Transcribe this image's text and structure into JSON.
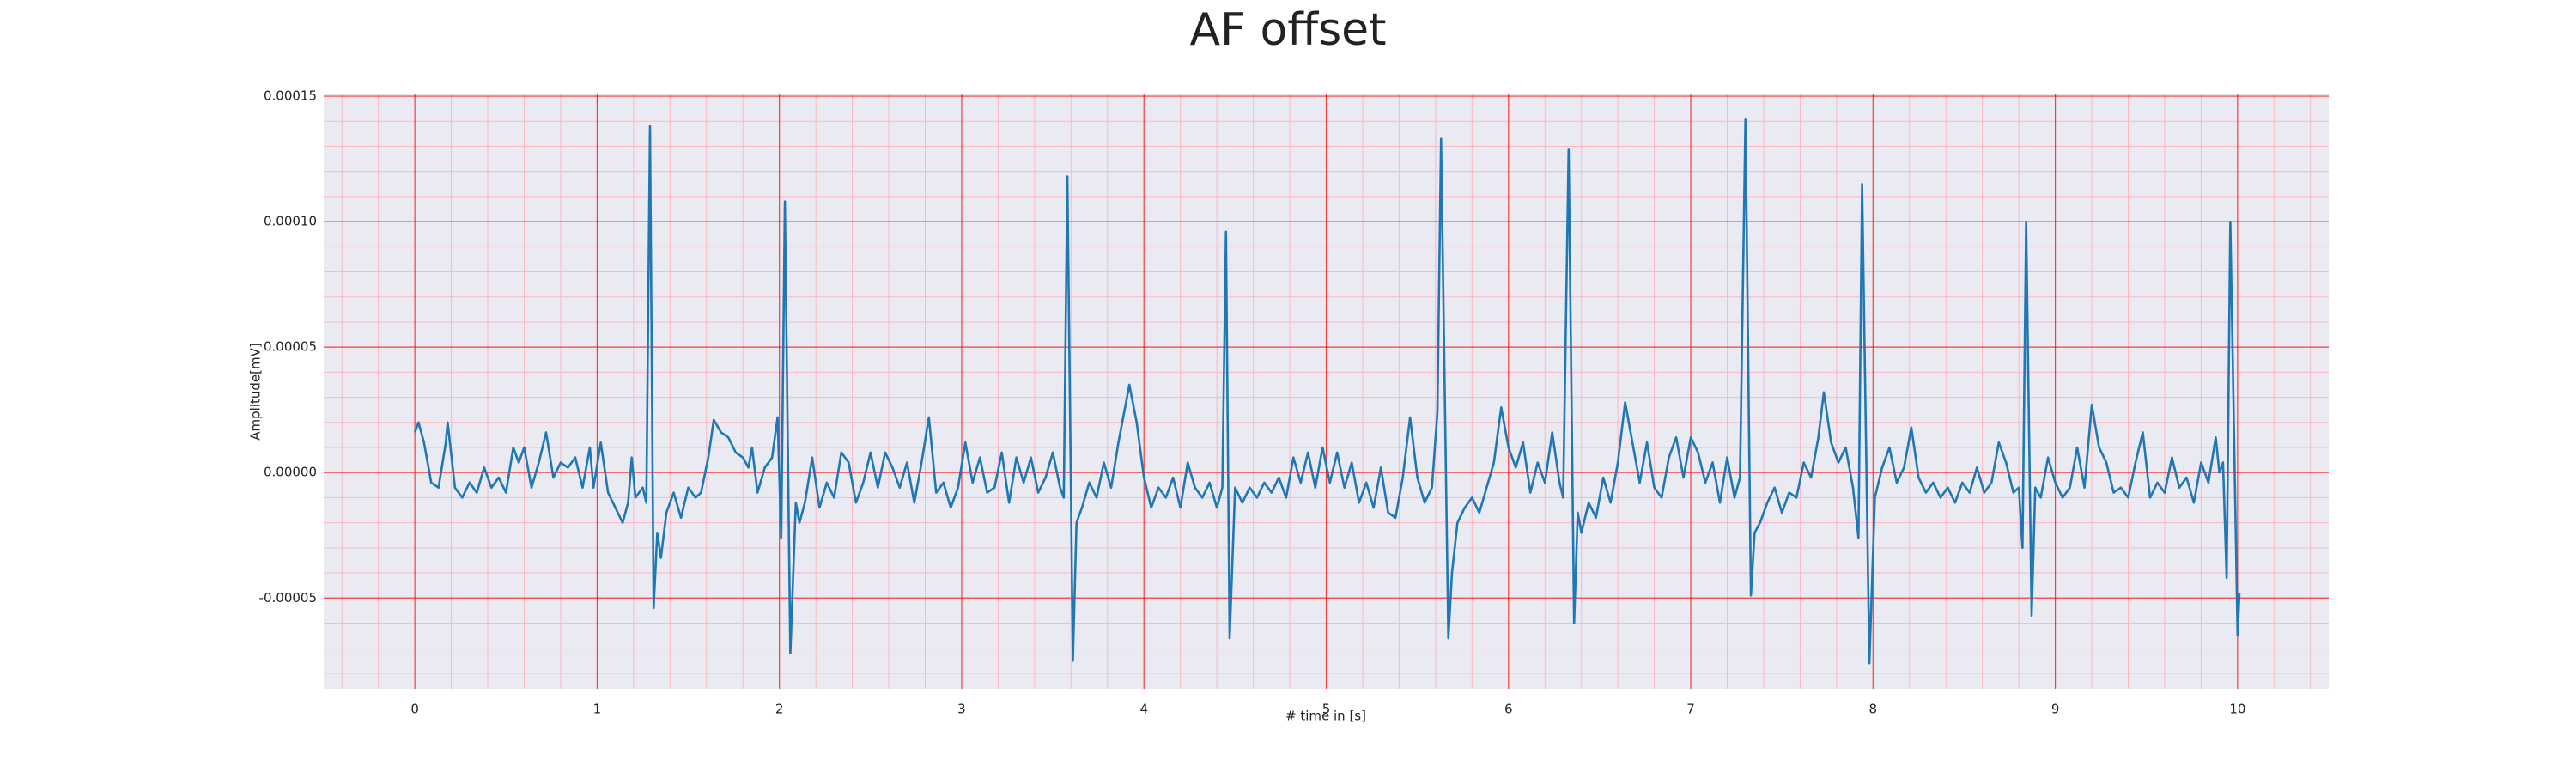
{
  "chart_data": {
    "type": "line",
    "title": "AF offset",
    "x_label": "# time in [s]",
    "y_label": "Amplitude[mV]",
    "color": "#1f77b4",
    "background": "#eaeaf2",
    "grid": true,
    "grid_color": "#ff0000",
    "minor_grid": true,
    "minor_grid_color": "#ffb6c1",
    "xlim": [
      -0.5,
      10.5
    ],
    "ylim": [
      -8.62e-05,
      0.0001507
    ],
    "xticks": [
      0,
      1,
      2,
      3,
      4,
      5,
      6,
      7,
      8,
      9,
      10
    ],
    "yticks": [
      {
        "value": -5e-05,
        "label": "-0.00005"
      },
      {
        "value": 0,
        "label": "0.00000"
      },
      {
        "value": 5e-05,
        "label": "0.00005"
      },
      {
        "value": 0.0001,
        "label": "0.00010"
      },
      {
        "value": 0.00015,
        "label": "0.00015"
      }
    ],
    "x": [
      0.0,
      0.02,
      0.05,
      0.09,
      0.13,
      0.17,
      0.18,
      0.22,
      0.26,
      0.3,
      0.34,
      0.38,
      0.42,
      0.46,
      0.5,
      0.54,
      0.57,
      0.6,
      0.64,
      0.68,
      0.72,
      0.76,
      0.8,
      0.84,
      0.88,
      0.92,
      0.96,
      0.98,
      1.02,
      1.06,
      1.1,
      1.14,
      1.17,
      1.19,
      1.21,
      1.25,
      1.27,
      1.29,
      1.31,
      1.33,
      1.35,
      1.38,
      1.42,
      1.46,
      1.5,
      1.54,
      1.57,
      1.61,
      1.64,
      1.68,
      1.72,
      1.76,
      1.8,
      1.83,
      1.85,
      1.88,
      1.92,
      1.96,
      1.99,
      2.01,
      2.03,
      2.06,
      2.09,
      2.11,
      2.14,
      2.18,
      2.22,
      2.26,
      2.3,
      2.34,
      2.38,
      2.42,
      2.46,
      2.5,
      2.54,
      2.58,
      2.62,
      2.66,
      2.7,
      2.74,
      2.78,
      2.82,
      2.86,
      2.9,
      2.94,
      2.98,
      3.02,
      3.06,
      3.1,
      3.14,
      3.18,
      3.22,
      3.26,
      3.3,
      3.34,
      3.38,
      3.42,
      3.46,
      3.5,
      3.54,
      3.56,
      3.58,
      3.61,
      3.63,
      3.66,
      3.7,
      3.74,
      3.78,
      3.82,
      3.86,
      3.92,
      3.96,
      4.0,
      4.04,
      4.08,
      4.12,
      4.16,
      4.2,
      4.24,
      4.28,
      4.32,
      4.36,
      4.4,
      4.43,
      4.45,
      4.47,
      4.5,
      4.54,
      4.58,
      4.62,
      4.66,
      4.7,
      4.74,
      4.78,
      4.82,
      4.86,
      4.9,
      4.94,
      4.98,
      5.02,
      5.06,
      5.1,
      5.14,
      5.18,
      5.22,
      5.26,
      5.3,
      5.34,
      5.38,
      5.42,
      5.46,
      5.5,
      5.54,
      5.58,
      5.61,
      5.63,
      5.67,
      5.69,
      5.72,
      5.76,
      5.8,
      5.84,
      5.88,
      5.92,
      5.96,
      6.0,
      6.04,
      6.08,
      6.12,
      6.16,
      6.2,
      6.24,
      6.28,
      6.3,
      6.33,
      6.36,
      6.38,
      6.4,
      6.44,
      6.48,
      6.52,
      6.56,
      6.6,
      6.64,
      6.68,
      6.72,
      6.76,
      6.8,
      6.84,
      6.88,
      6.92,
      6.96,
      7.0,
      7.04,
      7.08,
      7.12,
      7.16,
      7.2,
      7.24,
      7.27,
      7.3,
      7.33,
      7.35,
      7.38,
      7.42,
      7.46,
      7.5,
      7.54,
      7.58,
      7.62,
      7.66,
      7.7,
      7.73,
      7.77,
      7.81,
      7.85,
      7.89,
      7.92,
      7.94,
      7.98,
      8.01,
      8.05,
      8.09,
      8.13,
      8.17,
      8.21,
      8.25,
      8.29,
      8.33,
      8.37,
      8.41,
      8.45,
      8.49,
      8.53,
      8.57,
      8.61,
      8.65,
      8.69,
      8.73,
      8.77,
      8.8,
      8.82,
      8.84,
      8.87,
      8.89,
      8.92,
      8.96,
      9.0,
      9.04,
      9.08,
      9.12,
      9.16,
      9.2,
      9.24,
      9.28,
      9.32,
      9.36,
      9.4,
      9.44,
      9.48,
      9.52,
      9.56,
      9.6,
      9.64,
      9.68,
      9.72,
      9.76,
      9.8,
      9.84,
      9.88,
      9.9,
      9.92,
      9.94,
      9.96,
      10.0,
      10.01
    ],
    "values": [
      1.6e-05,
      2e-05,
      1.2e-05,
      -4e-06,
      -6e-06,
      1.2e-05,
      2e-05,
      -6e-06,
      -1e-05,
      -4e-06,
      -8e-06,
      2e-06,
      -6e-06,
      -2e-06,
      -8e-06,
      1e-05,
      4e-06,
      1e-05,
      -6e-06,
      4e-06,
      1.6e-05,
      -2e-06,
      4e-06,
      2e-06,
      6e-06,
      -6e-06,
      1e-05,
      -6e-06,
      1.2e-05,
      -8e-06,
      -1.4e-05,
      -2e-05,
      -1.2e-05,
      6e-06,
      -1e-05,
      -6e-06,
      -1.2e-05,
      0.000138,
      -5.4e-05,
      -2.4e-05,
      -3.4e-05,
      -1.6e-05,
      -8e-06,
      -1.8e-05,
      -6e-06,
      -1e-05,
      -8e-06,
      6e-06,
      2.1e-05,
      1.6e-05,
      1.4e-05,
      8e-06,
      6e-06,
      2e-06,
      1e-05,
      -8e-06,
      2e-06,
      6e-06,
      2.2e-05,
      -2.6e-05,
      0.000108,
      -7.2e-05,
      -1.2e-05,
      -2e-05,
      -1.2e-05,
      6e-06,
      -1.4e-05,
      -4e-06,
      -1e-05,
      8e-06,
      4e-06,
      -1.2e-05,
      -4e-06,
      8e-06,
      -6e-06,
      8e-06,
      2e-06,
      -6e-06,
      4e-06,
      -1.2e-05,
      4e-06,
      2.2e-05,
      -8e-06,
      -4e-06,
      -1.4e-05,
      -6e-06,
      1.2e-05,
      -4e-06,
      6e-06,
      -8e-06,
      -6e-06,
      8e-06,
      -1.2e-05,
      6e-06,
      -4e-06,
      6e-06,
      -8e-06,
      -2e-06,
      8e-06,
      -6e-06,
      -1e-05,
      0.000118,
      -7.5e-05,
      -2e-05,
      -1.4e-05,
      -4e-06,
      -1e-05,
      4e-06,
      -6e-06,
      1.2e-05,
      3.5e-05,
      2e-05,
      -2e-06,
      -1.4e-05,
      -6e-06,
      -1e-05,
      -2e-06,
      -1.4e-05,
      4e-06,
      -6e-06,
      -1e-05,
      -4e-06,
      -1.4e-05,
      -6e-06,
      9.6e-05,
      -6.6e-05,
      -6e-06,
      -1.2e-05,
      -6e-06,
      -1e-05,
      -4e-06,
      -8e-06,
      -2e-06,
      -1e-05,
      6e-06,
      -4e-06,
      8e-06,
      -6e-06,
      1e-05,
      -4e-06,
      8e-06,
      -6e-06,
      4e-06,
      -1.2e-05,
      -4e-06,
      -1.4e-05,
      2e-06,
      -1.6e-05,
      -1.8e-05,
      -2e-06,
      2.2e-05,
      -2e-06,
      -1.2e-05,
      -6e-06,
      2.4e-05,
      0.000133,
      -6.6e-05,
      -4e-05,
      -2e-05,
      -1.4e-05,
      -1e-05,
      -1.6e-05,
      -6e-06,
      4e-06,
      2.6e-05,
      1e-05,
      2e-06,
      1.2e-05,
      -8e-06,
      4e-06,
      -4e-06,
      1.6e-05,
      -4e-06,
      -1e-05,
      0.000129,
      -6e-05,
      -1.6e-05,
      -2.4e-05,
      -1.2e-05,
      -1.8e-05,
      -2e-06,
      -1.2e-05,
      4e-06,
      2.8e-05,
      1.2e-05,
      -4e-06,
      1.2e-05,
      -6e-06,
      -1e-05,
      6e-06,
      1.4e-05,
      -2e-06,
      1.4e-05,
      8e-06,
      -4e-06,
      4e-06,
      -1.2e-05,
      6e-06,
      -1e-05,
      -2e-06,
      0.000141,
      -4.9e-05,
      -2.4e-05,
      -2e-05,
      -1.2e-05,
      -6e-06,
      -1.6e-05,
      -8e-06,
      -1e-05,
      4e-06,
      -2e-06,
      1.4e-05,
      3.2e-05,
      1.2e-05,
      4e-06,
      1e-05,
      -6e-06,
      -2.6e-05,
      0.000115,
      -7.6e-05,
      -1e-05,
      2e-06,
      1e-05,
      -4e-06,
      2e-06,
      1.8e-05,
      -2e-06,
      -8e-06,
      -4e-06,
      -1e-05,
      -6e-06,
      -1.2e-05,
      -4e-06,
      -8e-06,
      2e-06,
      -8e-06,
      -4e-06,
      1.2e-05,
      4e-06,
      -8e-06,
      -6e-06,
      -3e-05,
      0.0001,
      -5.7e-05,
      -6e-06,
      -1e-05,
      6e-06,
      -4e-06,
      -1e-05,
      -6e-06,
      1e-05,
      -6e-06,
      2.7e-05,
      1e-05,
      4e-06,
      -8e-06,
      -6e-06,
      -1e-05,
      4e-06,
      1.6e-05,
      -1e-05,
      -4e-06,
      -8e-06,
      6e-06,
      -6e-06,
      -2e-06,
      -1.2e-05,
      4e-06,
      -4e-06,
      1.4e-05,
      0,
      4e-06,
      -4.2e-05,
      0.0001,
      -6.5e-05,
      -4.8e-05
    ]
  }
}
